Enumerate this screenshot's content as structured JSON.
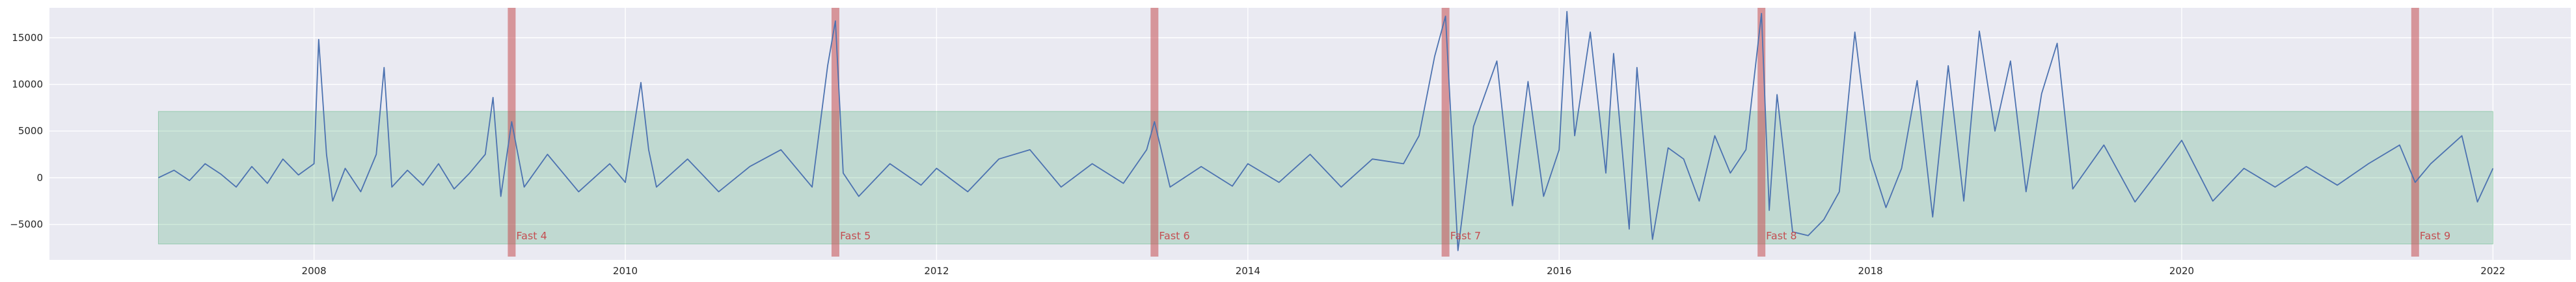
{
  "chart_data": {
    "type": "line",
    "title": "",
    "xlabel": "",
    "ylabel": "",
    "xlim": [
      2006.3,
      2022.5
    ],
    "ylim": [
      -8800,
      18200
    ],
    "x_ticks": [
      2008,
      2010,
      2012,
      2014,
      2016,
      2018,
      2020,
      2022
    ],
    "x_tick_labels": [
      "2008",
      "2010",
      "2012",
      "2014",
      "2016",
      "2018",
      "2020",
      "2022"
    ],
    "y_ticks": [
      -5000,
      0,
      5000,
      10000,
      15000
    ],
    "y_tick_labels": [
      "−5000",
      "0",
      "5000",
      "10000",
      "15000"
    ],
    "grid": true,
    "band": {
      "x_start": 2007.0,
      "x_end": 2022.0,
      "y_low": -7100,
      "y_high": 7100,
      "color": "#2ca05a"
    },
    "markers": [
      {
        "label": "Fast 4",
        "x": 2009.27
      },
      {
        "label": "Fast 5",
        "x": 2011.35
      },
      {
        "label": "Fast 6",
        "x": 2013.4
      },
      {
        "label": "Fast 7",
        "x": 2015.27
      },
      {
        "label": "Fast 8",
        "x": 2017.3
      },
      {
        "label": "Fast 9",
        "x": 2021.5
      }
    ],
    "marker_color": "#c44e52",
    "series": [
      {
        "color": "#4c72b0",
        "x": [
          2007.0,
          2007.1,
          2007.2,
          2007.3,
          2007.4,
          2007.5,
          2007.6,
          2007.7,
          2007.8,
          2007.9,
          2008.0,
          2008.03,
          2008.08,
          2008.12,
          2008.2,
          2008.3,
          2008.4,
          2008.45,
          2008.5,
          2008.6,
          2008.7,
          2008.8,
          2008.9,
          2009.0,
          2009.1,
          2009.15,
          2009.2,
          2009.27,
          2009.35,
          2009.5,
          2009.7,
          2009.9,
          2010.0,
          2010.1,
          2010.15,
          2010.2,
          2010.4,
          2010.6,
          2010.8,
          2011.0,
          2011.2,
          2011.3,
          2011.35,
          2011.4,
          2011.5,
          2011.7,
          2011.9,
          2012.0,
          2012.2,
          2012.4,
          2012.6,
          2012.8,
          2013.0,
          2013.2,
          2013.35,
          2013.4,
          2013.5,
          2013.7,
          2013.9,
          2014.0,
          2014.2,
          2014.4,
          2014.6,
          2014.8,
          2015.0,
          2015.1,
          2015.2,
          2015.27,
          2015.35,
          2015.45,
          2015.6,
          2015.7,
          2015.8,
          2015.9,
          2016.0,
          2016.05,
          2016.1,
          2016.2,
          2016.3,
          2016.35,
          2016.45,
          2016.5,
          2016.6,
          2016.7,
          2016.8,
          2016.9,
          2017.0,
          2017.1,
          2017.2,
          2017.3,
          2017.35,
          2017.4,
          2017.5,
          2017.6,
          2017.7,
          2017.8,
          2017.9,
          2018.0,
          2018.1,
          2018.2,
          2018.3,
          2018.4,
          2018.5,
          2018.6,
          2018.7,
          2018.8,
          2018.9,
          2019.0,
          2019.1,
          2019.2,
          2019.3,
          2019.5,
          2019.7,
          2019.9,
          2020.0,
          2020.2,
          2020.4,
          2020.6,
          2020.8,
          2021.0,
          2021.2,
          2021.4,
          2021.5,
          2021.6,
          2021.8,
          2021.9,
          2022.0
        ],
        "y": [
          0,
          800,
          -300,
          1500,
          400,
          -1000,
          1200,
          -600,
          2000,
          300,
          1500,
          14800,
          2500,
          -2500,
          1000,
          -1500,
          2500,
          11800,
          -1000,
          800,
          -800,
          1500,
          -1200,
          500,
          2500,
          8600,
          -2000,
          6000,
          -1000,
          2500,
          -1500,
          1500,
          -500,
          10200,
          3000,
          -1000,
          2000,
          -1500,
          1200,
          3000,
          -1000,
          12000,
          16800,
          500,
          -2000,
          1500,
          -800,
          1000,
          -1500,
          2000,
          3000,
          -1000,
          1500,
          -600,
          3000,
          6000,
          -1000,
          1200,
          -900,
          1500,
          -500,
          2500,
          -1000,
          2000,
          1500,
          4500,
          13000,
          17300,
          -7800,
          5500,
          12500,
          -3000,
          10300,
          -2000,
          3000,
          17800,
          4500,
          15600,
          500,
          13300,
          -5500,
          11800,
          -6600,
          3200,
          2000,
          -2500,
          4500,
          500,
          3000,
          17600,
          -3500,
          8900,
          -5800,
          -6200,
          -4500,
          -1500,
          15600,
          2000,
          -3200,
          1000,
          10400,
          -4200,
          12000,
          -2500,
          15700,
          5000,
          12500,
          -1500,
          9000,
          14400,
          -1200,
          3500,
          -2600,
          1800,
          4000,
          -2500,
          1000,
          -1000,
          1200,
          -800,
          1500,
          3500,
          -500,
          1500,
          4500,
          -2600,
          1000
        ]
      }
    ]
  }
}
